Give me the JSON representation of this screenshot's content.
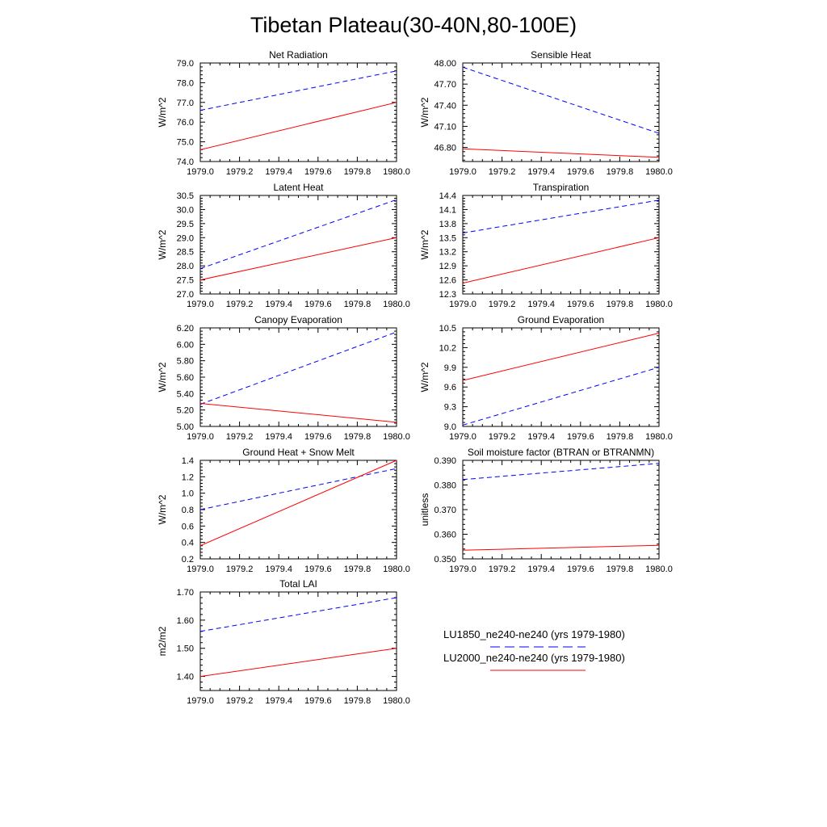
{
  "title": "Tibetan Plateau(30-40N,80-100E)",
  "legend": {
    "placement": "right of bottom panel",
    "entries": [
      {
        "label": "LU1850_ne240-ne240 (yrs 1979-1980)",
        "color": "#0000ff",
        "dash": "dashed"
      },
      {
        "label": "LU2000_ne240-ne240 (yrs 1979-1980)",
        "color": "#ff0000",
        "dash": "solid"
      }
    ]
  },
  "chart_data": [
    {
      "type": "line",
      "title": "Net Radiation",
      "ylabel": "W/m^2",
      "x": [
        1979.0,
        1980.0
      ],
      "xlim": [
        1979.0,
        1980.0
      ],
      "ylim": [
        74.0,
        79.0
      ],
      "xticks": [
        "1979.0",
        "1979.2",
        "1979.4",
        "1979.6",
        "1979.8",
        "1980.0"
      ],
      "yticks": [
        "74.0",
        "75.0",
        "76.0",
        "77.0",
        "78.0",
        "79.0"
      ],
      "series": [
        {
          "values": [
            76.6,
            78.6
          ],
          "color": "#0000ff",
          "dash": "dashed"
        },
        {
          "values": [
            74.6,
            77.0
          ],
          "color": "#ff0000",
          "dash": "solid"
        }
      ]
    },
    {
      "type": "line",
      "title": "Sensible Heat",
      "ylabel": "W/m^2",
      "x": [
        1979.0,
        1980.0
      ],
      "xlim": [
        1979.0,
        1980.0
      ],
      "ylim": [
        46.6,
        48.0
      ],
      "xticks": [
        "1979.0",
        "1979.2",
        "1979.4",
        "1979.6",
        "1979.8",
        "1980.0"
      ],
      "yticks": [
        "46.80",
        "47.10",
        "47.40",
        "47.70",
        "48.00"
      ],
      "series": [
        {
          "values": [
            47.94,
            47.0
          ],
          "color": "#0000ff",
          "dash": "dashed"
        },
        {
          "values": [
            46.78,
            46.66
          ],
          "color": "#ff0000",
          "dash": "solid"
        }
      ]
    },
    {
      "type": "line",
      "title": "Latent Heat",
      "ylabel": "W/m^2",
      "x": [
        1979.0,
        1980.0
      ],
      "xlim": [
        1979.0,
        1980.0
      ],
      "ylim": [
        27.0,
        30.5
      ],
      "xticks": [
        "1979.0",
        "1979.2",
        "1979.4",
        "1979.6",
        "1979.8",
        "1980.0"
      ],
      "yticks": [
        "27.0",
        "27.5",
        "28.0",
        "28.5",
        "29.0",
        "29.5",
        "30.0",
        "30.5"
      ],
      "series": [
        {
          "values": [
            27.9,
            30.35
          ],
          "color": "#0000ff",
          "dash": "dashed"
        },
        {
          "values": [
            27.5,
            29.0
          ],
          "color": "#ff0000",
          "dash": "solid"
        }
      ]
    },
    {
      "type": "line",
      "title": "Transpiration",
      "ylabel": "W/m^2",
      "x": [
        1979.0,
        1980.0
      ],
      "xlim": [
        1979.0,
        1980.0
      ],
      "ylim": [
        12.3,
        14.4
      ],
      "xticks": [
        "1979.0",
        "1979.2",
        "1979.4",
        "1979.6",
        "1979.8",
        "1980.0"
      ],
      "yticks": [
        "12.3",
        "12.6",
        "12.9",
        "13.2",
        "13.5",
        "13.8",
        "14.1",
        "14.4"
      ],
      "series": [
        {
          "values": [
            13.6,
            14.3
          ],
          "color": "#0000ff",
          "dash": "dashed"
        },
        {
          "values": [
            12.53,
            13.5
          ],
          "color": "#ff0000",
          "dash": "solid"
        }
      ]
    },
    {
      "type": "line",
      "title": "Canopy Evaporation",
      "ylabel": "W/m^2",
      "x": [
        1979.0,
        1980.0
      ],
      "xlim": [
        1979.0,
        1980.0
      ],
      "ylim": [
        5.0,
        6.2
      ],
      "xticks": [
        "1979.0",
        "1979.2",
        "1979.4",
        "1979.6",
        "1979.8",
        "1980.0"
      ],
      "yticks": [
        "5.00",
        "5.20",
        "5.40",
        "5.60",
        "5.80",
        "6.00",
        "6.20"
      ],
      "series": [
        {
          "values": [
            5.27,
            6.15
          ],
          "color": "#0000ff",
          "dash": "dashed"
        },
        {
          "values": [
            5.28,
            5.05
          ],
          "color": "#ff0000",
          "dash": "solid"
        }
      ]
    },
    {
      "type": "line",
      "title": "Ground Evaporation",
      "ylabel": "W/m^2",
      "x": [
        1979.0,
        1980.0
      ],
      "xlim": [
        1979.0,
        1980.0
      ],
      "ylim": [
        9.0,
        10.5
      ],
      "xticks": [
        "1979.0",
        "1979.2",
        "1979.4",
        "1979.6",
        "1979.8",
        "1980.0"
      ],
      "yticks": [
        "9.0",
        "9.3",
        "9.6",
        "9.9",
        "10.2",
        "10.5"
      ],
      "series": [
        {
          "values": [
            9.02,
            9.9
          ],
          "color": "#0000ff",
          "dash": "dashed"
        },
        {
          "values": [
            9.7,
            10.42
          ],
          "color": "#ff0000",
          "dash": "solid"
        }
      ]
    },
    {
      "type": "line",
      "title": "Ground Heat + Snow Melt",
      "ylabel": "W/m^2",
      "x": [
        1979.0,
        1980.0
      ],
      "xlim": [
        1979.0,
        1980.0
      ],
      "ylim": [
        0.2,
        1.4
      ],
      "xticks": [
        "1979.0",
        "1979.2",
        "1979.4",
        "1979.6",
        "1979.8",
        "1980.0"
      ],
      "yticks": [
        "0.2",
        "0.4",
        "0.6",
        "0.8",
        "1.0",
        "1.2",
        "1.4"
      ],
      "series": [
        {
          "values": [
            0.8,
            1.3
          ],
          "color": "#0000ff",
          "dash": "dashed"
        },
        {
          "values": [
            0.36,
            1.4
          ],
          "color": "#ff0000",
          "dash": "solid"
        }
      ]
    },
    {
      "type": "line",
      "title": "Soil moisture factor (BTRAN or BTRANMN)",
      "ylabel": "unitless",
      "x": [
        1979.0,
        1980.0
      ],
      "xlim": [
        1979.0,
        1980.0
      ],
      "ylim": [
        0.35,
        0.39
      ],
      "xticks": [
        "1979.0",
        "1979.2",
        "1979.4",
        "1979.6",
        "1979.8",
        "1980.0"
      ],
      "yticks": [
        "0.350",
        "0.360",
        "0.370",
        "0.380",
        "0.390"
      ],
      "series": [
        {
          "values": [
            0.3822,
            0.3888
          ],
          "color": "#0000ff",
          "dash": "dashed"
        },
        {
          "values": [
            0.3535,
            0.3555
          ],
          "color": "#ff0000",
          "dash": "solid"
        }
      ]
    },
    {
      "type": "line",
      "title": "Total LAI",
      "ylabel": "m2/m2",
      "x": [
        1979.0,
        1980.0
      ],
      "xlim": [
        1979.0,
        1980.0
      ],
      "ylim": [
        1.35,
        1.7
      ],
      "xticks": [
        "1979.0",
        "1979.2",
        "1979.4",
        "1979.6",
        "1979.8",
        "1980.0"
      ],
      "yticks": [
        "1.40",
        "1.50",
        "1.60",
        "1.70"
      ],
      "series": [
        {
          "values": [
            1.56,
            1.68
          ],
          "color": "#0000ff",
          "dash": "dashed"
        },
        {
          "values": [
            1.4,
            1.5
          ],
          "color": "#ff0000",
          "dash": "solid"
        }
      ]
    }
  ]
}
